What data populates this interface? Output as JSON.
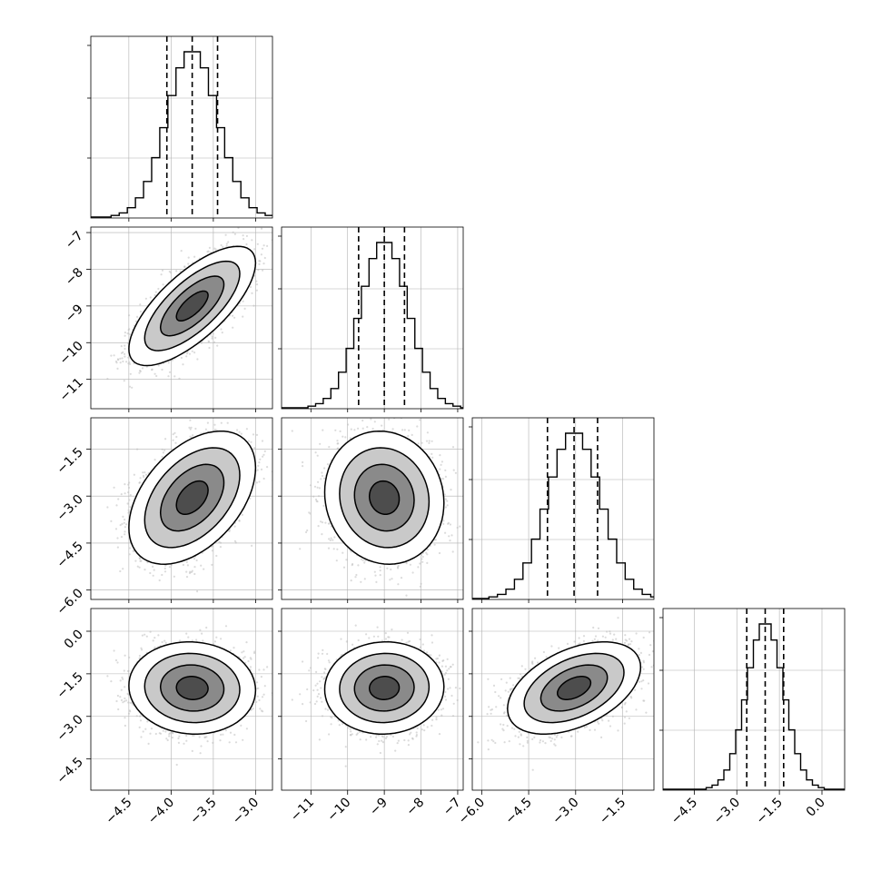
{
  "chart_data": {
    "type": "corner",
    "title": "",
    "parameters": [
      {
        "xlabel": "",
        "ylabel": "",
        "median": -3.75,
        "q16": -4.05,
        "q84": -3.45,
        "std": 0.3,
        "range": [
          -4.95,
          -2.8
        ],
        "xticks": [
          -4.5,
          -4.0,
          -3.5,
          -3.0
        ],
        "xtick_labels": [
          "−4.5",
          "−4.0",
          "−3.5",
          "−3.0"
        ]
      },
      {
        "xlabel": "",
        "ylabel": "",
        "median": -9.0,
        "q16": -9.7,
        "q84": -8.45,
        "std": 0.65,
        "range": [
          -11.8,
          -6.85
        ],
        "xticks": [
          -11,
          -10,
          -9,
          -8,
          -7
        ],
        "xtick_labels": [
          "−11",
          "−10",
          "−9",
          "−8",
          "−7"
        ],
        "yticks": [
          -11,
          -10,
          -9,
          -8,
          -7
        ],
        "ytick_labels": [
          "−11",
          "−10",
          "−9",
          "−8",
          "−7"
        ]
      },
      {
        "xlabel": "",
        "ylabel": "",
        "median": -3.05,
        "q16": -3.9,
        "q84": -2.3,
        "std": 0.85,
        "range": [
          -6.3,
          -0.5
        ],
        "xticks": [
          -6.0,
          -4.5,
          -3.0,
          -1.5
        ],
        "xtick_labels": [
          "−6.0",
          "−4.5",
          "−3.0",
          "−1.5"
        ],
        "yticks": [
          -6.0,
          -4.5,
          -3.0,
          -1.5
        ],
        "ytick_labels": [
          "−6.0",
          "−4.5",
          "−3.0",
          "−1.5"
        ]
      },
      {
        "xlabel": "",
        "ylabel": "",
        "median": -2.0,
        "q16": -2.65,
        "q84": -1.35,
        "std": 0.65,
        "range": [
          -5.6,
          0.8
        ],
        "xticks": [
          -4.5,
          -3.0,
          -1.5,
          0.0
        ],
        "xtick_labels": [
          "−4.5",
          "−3.0",
          "−1.5",
          "0.0"
        ],
        "yticks": [
          -4.5,
          -3.0,
          -1.5,
          0.0
        ],
        "ytick_labels": [
          "−4.5",
          "−3.0",
          "−1.5",
          "0.0"
        ]
      }
    ],
    "correlations": [
      {
        "pair": [
          0,
          1
        ],
        "rho": 0.72
      },
      {
        "pair": [
          0,
          2
        ],
        "rho": 0.45
      },
      {
        "pair": [
          1,
          2
        ],
        "rho": -0.08
      },
      {
        "pair": [
          0,
          3
        ],
        "rho": -0.05
      },
      {
        "pair": [
          1,
          3
        ],
        "rho": 0.03
      },
      {
        "pair": [
          2,
          3
        ],
        "rho": 0.45
      }
    ],
    "histogram_bins": 20,
    "quantile_lines": [
      0.16,
      0.5,
      0.84
    ],
    "contour_levels_sigma": [
      0.5,
      1.0,
      1.5,
      2.0
    ],
    "grid": true,
    "legend": "none",
    "colors": {
      "line": "#000000",
      "points": "#bdbdbd",
      "grid": "#b0b0b0"
    }
  }
}
